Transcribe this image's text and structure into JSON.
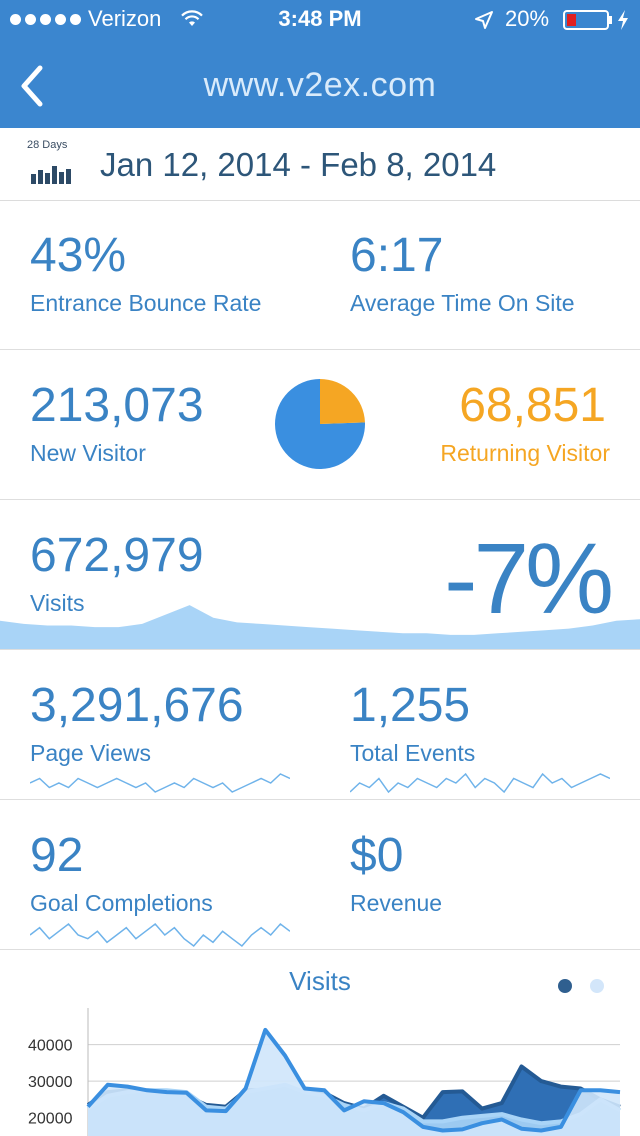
{
  "status_bar": {
    "carrier": "Verizon",
    "time": "3:48 PM",
    "battery": "20%"
  },
  "nav": {
    "title": "www.v2ex.com"
  },
  "date_range": {
    "period_label": "28 Days",
    "range": "Jan 12, 2014 - Feb 8, 2014"
  },
  "metrics": {
    "bounce_rate": {
      "value": "43%",
      "label": "Entrance Bounce Rate"
    },
    "time_on_site": {
      "value": "6:17",
      "label": "Average Time On Site"
    },
    "new_visitor": {
      "value": "213,073",
      "label": "New Visitor"
    },
    "returning_visitor": {
      "value": "68,851",
      "label": "Returning Visitor"
    },
    "visits": {
      "value": "672,979",
      "label": "Visits",
      "change": "-7%"
    },
    "page_views": {
      "value": "3,291,676",
      "label": "Page Views"
    },
    "total_events": {
      "value": "1,255",
      "label": "Total Events"
    },
    "goal_completions": {
      "value": "92",
      "label": "Goal Completions"
    },
    "revenue": {
      "value": "$0",
      "label": "Revenue"
    }
  },
  "colors": {
    "nav_bg": "#3b86cf",
    "accent_blue": "#3a83c4",
    "orange": "#f5a623",
    "pie_blue": "#3a8fe0",
    "area_light": "#a9d4f7"
  },
  "visitor_share": {
    "new": 213073,
    "returning": 68851
  },
  "visits_trend": [
    18,
    16,
    15,
    15,
    14,
    14,
    16,
    22,
    28,
    20,
    17,
    16,
    15,
    14,
    13,
    12,
    11,
    10,
    10,
    9,
    9,
    10,
    11,
    12,
    13,
    15,
    18,
    19
  ],
  "pageviews_trend": [
    5,
    6,
    4,
    5,
    4,
    6,
    5,
    4,
    5,
    6,
    5,
    4,
    5,
    3,
    4,
    5,
    4,
    6,
    5,
    4,
    5,
    3,
    4,
    5,
    6,
    5,
    7,
    6
  ],
  "events_trend": [
    3,
    5,
    4,
    6,
    3,
    5,
    4,
    6,
    5,
    4,
    6,
    5,
    7,
    4,
    6,
    5,
    3,
    6,
    5,
    4,
    7,
    5,
    6,
    4,
    5,
    6,
    7,
    6
  ],
  "goals_trend": [
    6,
    8,
    5,
    7,
    9,
    6,
    5,
    7,
    4,
    6,
    8,
    5,
    7,
    9,
    6,
    8,
    5,
    3,
    6,
    4,
    7,
    5,
    3,
    6,
    8,
    6,
    9,
    7
  ],
  "chart_data": {
    "type": "area",
    "title": "Visits",
    "ylim": [
      15000,
      50000
    ],
    "y_ticks": [
      "40000",
      "30000",
      "20000"
    ],
    "y_tick_values": [
      40000,
      30000,
      20000
    ],
    "series": [
      {
        "values": [
          23000,
          29000,
          28500,
          27500,
          27000,
          26800,
          22000,
          21800,
          28000,
          44000,
          37000,
          28000,
          27500,
          22000,
          24500,
          24000,
          21500,
          17500,
          16500,
          16800,
          18500,
          19500,
          17000,
          16500,
          17500,
          27500,
          27500,
          27000
        ]
      },
      {
        "values": [
          23500,
          27000,
          27500,
          27000,
          26500,
          26000,
          23500,
          23000,
          27500,
          27500,
          28500,
          27000,
          26800,
          24000,
          22500,
          26000,
          23000,
          20000,
          27000,
          27200,
          22500,
          24000,
          34000,
          30000,
          28500,
          28000,
          25000,
          23000
        ]
      },
      {
        "values": [
          22500,
          26000,
          27000,
          27500,
          27500,
          27000,
          23000,
          22500,
          27000,
          28000,
          29000,
          27000,
          26000,
          23500,
          22000,
          24000,
          22500,
          19000,
          19000,
          20000,
          20500,
          21000,
          19500,
          18500,
          19000,
          21000,
          25000,
          22000
        ]
      }
    ],
    "grid": true
  },
  "pager": {
    "active_index": 0,
    "total": 2
  }
}
